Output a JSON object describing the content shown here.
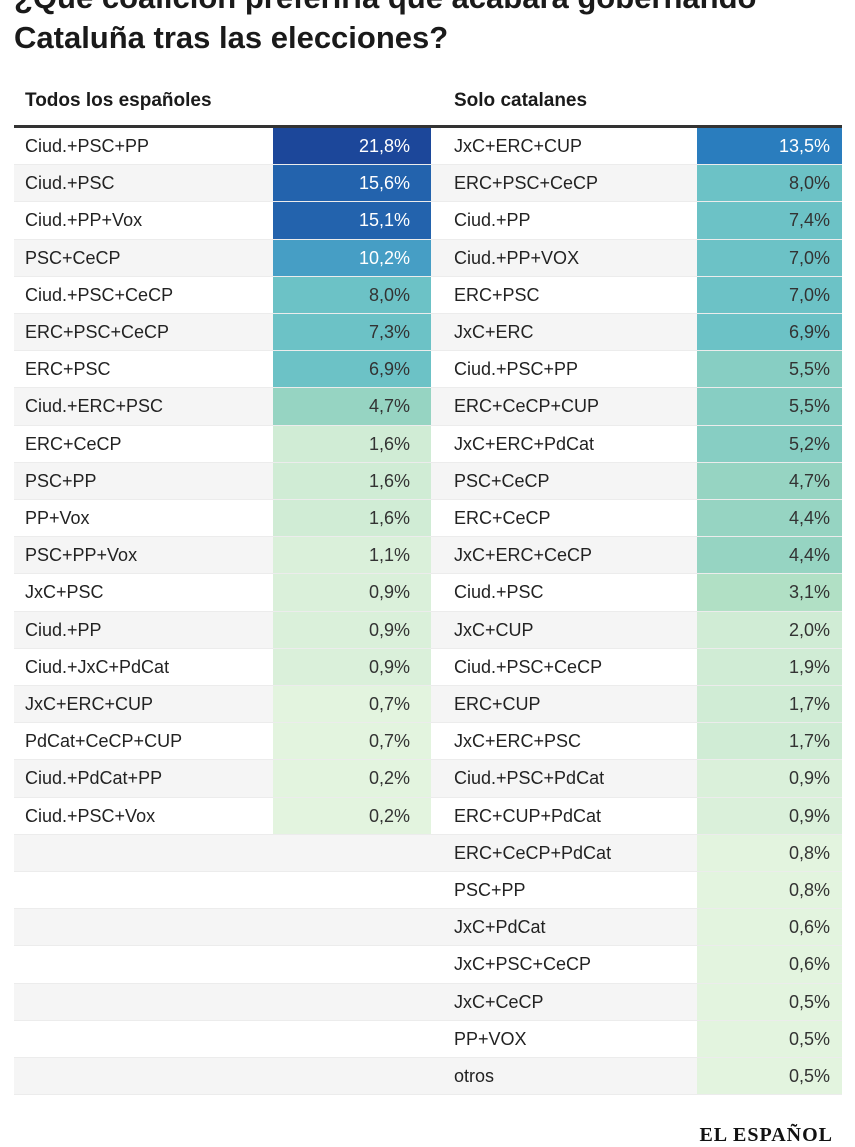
{
  "title": "¿Qué coalición preferiría que acabara gobernando Cataluña tras las elecciones?",
  "footer_logo": "EL ESPAÑOL",
  "chart_data": {
    "type": "table",
    "title": "¿Qué coalición preferiría que acabara gobernando Cataluña tras las elecciones?",
    "columns": [
      {
        "header": "Todos los españoles",
        "rows": [
          {
            "name": "Ciud.+PSC+PP",
            "value": 21.8,
            "label": "21,8%"
          },
          {
            "name": "Ciud.+PSC",
            "value": 15.6,
            "label": "15,6%"
          },
          {
            "name": "Ciud.+PP+Vox",
            "value": 15.1,
            "label": "15,1%"
          },
          {
            "name": "PSC+CeCP",
            "value": 10.2,
            "label": "10,2%"
          },
          {
            "name": "Ciud.+PSC+CeCP",
            "value": 8.0,
            "label": "8,0%"
          },
          {
            "name": "ERC+PSC+CeCP",
            "value": 7.3,
            "label": "7,3%"
          },
          {
            "name": "ERC+PSC",
            "value": 6.9,
            "label": "6,9%"
          },
          {
            "name": "Ciud.+ERC+PSC",
            "value": 4.7,
            "label": "4,7%"
          },
          {
            "name": "ERC+CeCP",
            "value": 1.6,
            "label": "1,6%"
          },
          {
            "name": "PSC+PP",
            "value": 1.6,
            "label": "1,6%"
          },
          {
            "name": "PP+Vox",
            "value": 1.6,
            "label": "1,6%"
          },
          {
            "name": "PSC+PP+Vox",
            "value": 1.1,
            "label": "1,1%"
          },
          {
            "name": "JxC+PSC",
            "value": 0.9,
            "label": "0,9%"
          },
          {
            "name": "Ciud.+PP",
            "value": 0.9,
            "label": "0,9%"
          },
          {
            "name": "Ciud.+JxC+PdCat",
            "value": 0.9,
            "label": "0,9%"
          },
          {
            "name": "JxC+ERC+CUP",
            "value": 0.7,
            "label": "0,7%"
          },
          {
            "name": "PdCat+CeCP+CUP",
            "value": 0.7,
            "label": "0,7%"
          },
          {
            "name": "Ciud.+PdCat+PP",
            "value": 0.2,
            "label": "0,2%"
          },
          {
            "name": "Ciud.+PSC+Vox",
            "value": 0.2,
            "label": "0,2%"
          }
        ]
      },
      {
        "header": "Solo catalanes",
        "rows": [
          {
            "name": "JxC+ERC+CUP",
            "value": 13.5,
            "label": "13,5%"
          },
          {
            "name": "ERC+PSC+CeCP",
            "value": 8.0,
            "label": "8,0%"
          },
          {
            "name": "Ciud.+PP",
            "value": 7.4,
            "label": "7,4%"
          },
          {
            "name": "Ciud.+PP+VOX",
            "value": 7.0,
            "label": "7,0%"
          },
          {
            "name": "ERC+PSC",
            "value": 7.0,
            "label": "7,0%"
          },
          {
            "name": "JxC+ERC",
            "value": 6.9,
            "label": "6,9%"
          },
          {
            "name": "Ciud.+PSC+PP",
            "value": 5.5,
            "label": "5,5%"
          },
          {
            "name": "ERC+CeCP+CUP",
            "value": 5.5,
            "label": "5,5%"
          },
          {
            "name": "JxC+ERC+PdCat",
            "value": 5.2,
            "label": "5,2%"
          },
          {
            "name": "PSC+CeCP",
            "value": 4.7,
            "label": "4,7%"
          },
          {
            "name": "ERC+CeCP",
            "value": 4.4,
            "label": "4,4%"
          },
          {
            "name": "JxC+ERC+CeCP",
            "value": 4.4,
            "label": "4,4%"
          },
          {
            "name": "Ciud.+PSC",
            "value": 3.1,
            "label": "3,1%"
          },
          {
            "name": "JxC+CUP",
            "value": 2.0,
            "label": "2,0%"
          },
          {
            "name": "Ciud.+PSC+CeCP",
            "value": 1.9,
            "label": "1,9%"
          },
          {
            "name": "ERC+CUP",
            "value": 1.7,
            "label": "1,7%"
          },
          {
            "name": "JxC+ERC+PSC",
            "value": 1.7,
            "label": "1,7%"
          },
          {
            "name": "Ciud.+PSC+PdCat",
            "value": 0.9,
            "label": "0,9%"
          },
          {
            "name": "ERC+CUP+PdCat",
            "value": 0.9,
            "label": "0,9%"
          },
          {
            "name": "ERC+CeCP+PdCat",
            "value": 0.8,
            "label": "0,8%"
          },
          {
            "name": "PSC+PP",
            "value": 0.8,
            "label": "0,8%"
          },
          {
            "name": "JxC+PdCat",
            "value": 0.6,
            "label": "0,6%"
          },
          {
            "name": "JxC+PSC+CeCP",
            "value": 0.6,
            "label": "0,6%"
          },
          {
            "name": "JxC+CeCP",
            "value": 0.5,
            "label": "0,5%"
          },
          {
            "name": "PP+VOX",
            "value": 0.5,
            "label": "0,5%"
          },
          {
            "name": "otros",
            "value": 0.5,
            "label": "0,5%"
          }
        ]
      }
    ],
    "color_scale": {
      "stops": [
        "#e6f5e1",
        "#a8dcc0",
        "#6cc2c6",
        "#2c86c4",
        "#1c479a"
      ]
    }
  }
}
